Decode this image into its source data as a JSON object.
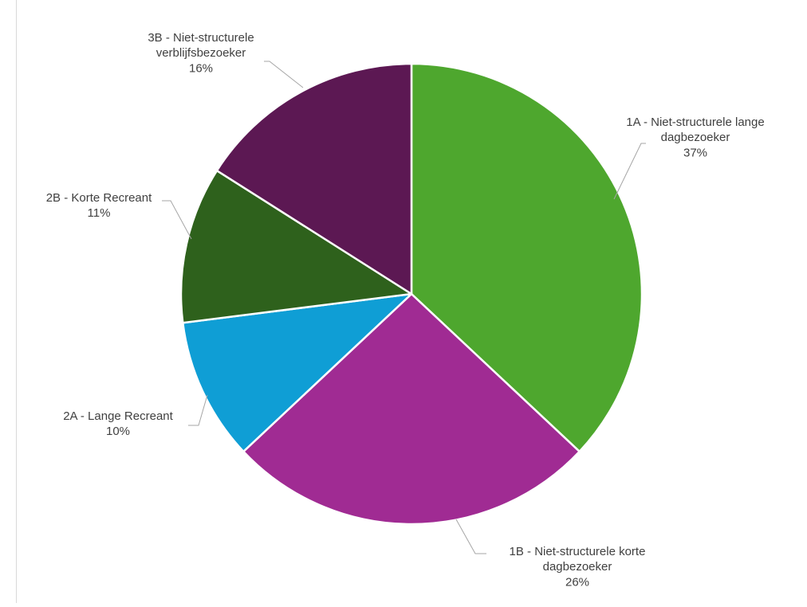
{
  "chart_data": {
    "type": "pie",
    "title": "",
    "slices": [
      {
        "label": [
          "1A - Niet-structurele lange",
          "dagbezoeker"
        ],
        "value": 37,
        "value_label": "37%",
        "color": "#4ea72e"
      },
      {
        "label": [
          "1B - Niet-structurele korte",
          "dagbezoeker"
        ],
        "value": 26,
        "value_label": "26%",
        "color": "#a02b93"
      },
      {
        "label": [
          "2A - Lange Recreant"
        ],
        "value": 10,
        "value_label": "10%",
        "color": "#0f9ed5"
      },
      {
        "label": [
          "2B - Korte Recreant"
        ],
        "value": 11,
        "value_label": "11%",
        "color": "#2e611c"
      },
      {
        "label": [
          "3B - Niet-structurele",
          "verblijfsbezoeker"
        ],
        "value": 16,
        "value_label": "16%",
        "color": "#5c1853"
      }
    ],
    "legend": "none",
    "start_angle": "12 o'clock",
    "direction": "clockwise"
  }
}
